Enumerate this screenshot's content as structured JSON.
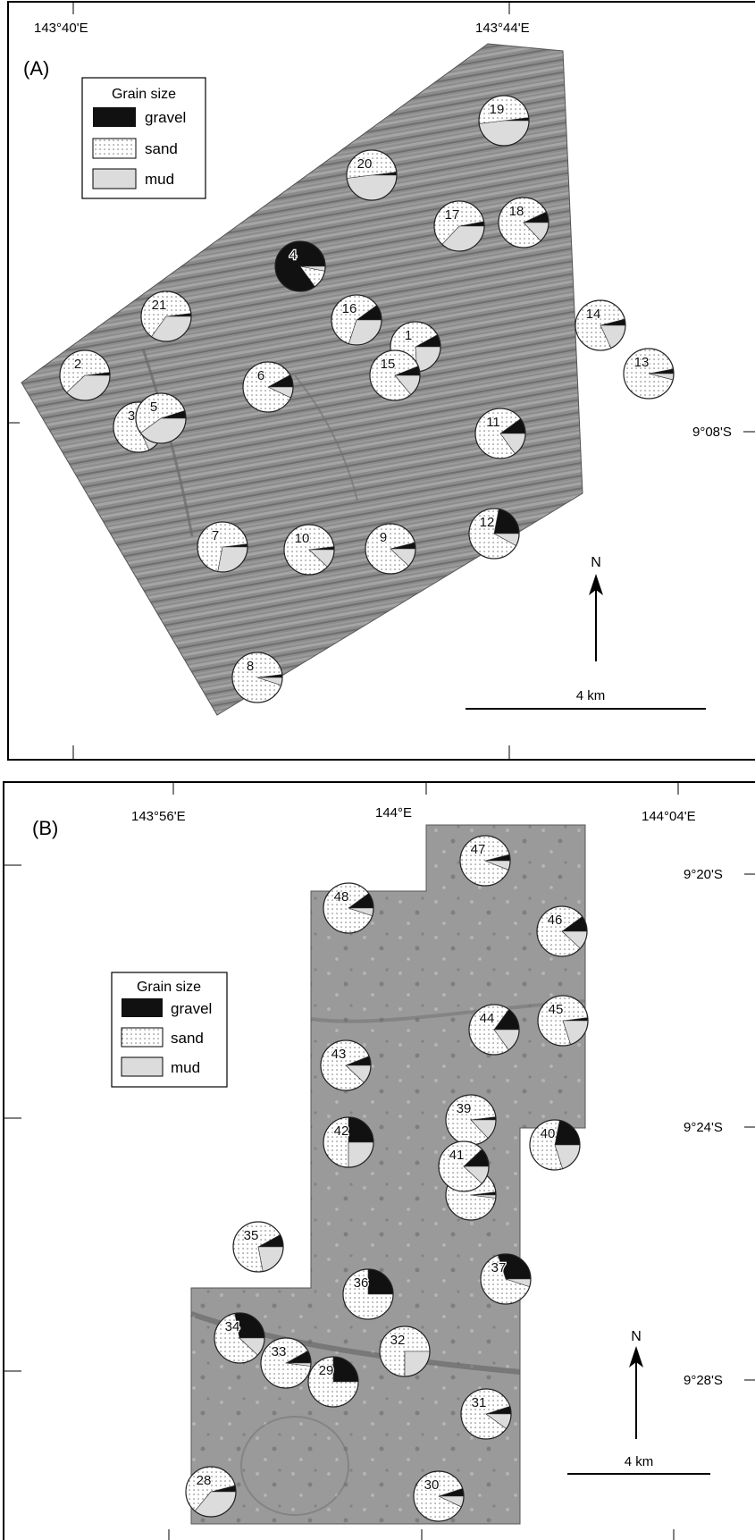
{
  "colors": {
    "gravel": "#111111",
    "sand": "#ffffff",
    "mud": "#dcdcdc",
    "relief": "#8d8d8d",
    "frame": "#000000"
  },
  "legend": {
    "title": "Grain size",
    "items": [
      {
        "key": "gravel",
        "label": "gravel"
      },
      {
        "key": "sand",
        "label": "sand"
      },
      {
        "key": "mud",
        "label": "mud"
      }
    ]
  },
  "panels": [
    {
      "label": "(A)",
      "lon_labels": [
        "143°40'E",
        "143°44'E"
      ],
      "lat_labels": [
        "9°08'S"
      ],
      "north_label": "N",
      "scale_label": "4 km",
      "sites": [
        {
          "id": "1",
          "gravel": 0.08,
          "sand": 0.68,
          "mud": 0.24
        },
        {
          "id": "2",
          "gravel": 0.02,
          "sand": 0.6,
          "mud": 0.38
        },
        {
          "id": "3",
          "gravel": 0.02,
          "sand": 0.8,
          "mud": 0.18
        },
        {
          "id": "4",
          "gravel": 0.85,
          "sand": 0.12,
          "mud": 0.03
        },
        {
          "id": "5",
          "gravel": 0.05,
          "sand": 0.55,
          "mud": 0.4
        },
        {
          "id": "6",
          "gravel": 0.08,
          "sand": 0.85,
          "mud": 0.07
        },
        {
          "id": "7",
          "gravel": 0.02,
          "sand": 0.7,
          "mud": 0.28
        },
        {
          "id": "8",
          "gravel": 0.02,
          "sand": 0.93,
          "mud": 0.05
        },
        {
          "id": "9",
          "gravel": 0.04,
          "sand": 0.84,
          "mud": 0.12
        },
        {
          "id": "10",
          "gravel": 0.02,
          "sand": 0.86,
          "mud": 0.12
        },
        {
          "id": "11",
          "gravel": 0.1,
          "sand": 0.75,
          "mud": 0.15
        },
        {
          "id": "12",
          "gravel": 0.22,
          "sand": 0.7,
          "mud": 0.08
        },
        {
          "id": "13",
          "gravel": 0.03,
          "sand": 0.93,
          "mud": 0.04
        },
        {
          "id": "14",
          "gravel": 0.04,
          "sand": 0.78,
          "mud": 0.18
        },
        {
          "id": "15",
          "gravel": 0.06,
          "sand": 0.8,
          "mud": 0.14
        },
        {
          "id": "16",
          "gravel": 0.1,
          "sand": 0.6,
          "mud": 0.3
        },
        {
          "id": "17",
          "gravel": 0.03,
          "sand": 0.6,
          "mud": 0.37
        },
        {
          "id": "18",
          "gravel": 0.07,
          "sand": 0.8,
          "mud": 0.13
        },
        {
          "id": "19",
          "gravel": 0.02,
          "sand": 0.5,
          "mud": 0.48
        },
        {
          "id": "20",
          "gravel": 0.02,
          "sand": 0.5,
          "mud": 0.48
        },
        {
          "id": "21",
          "gravel": 0.02,
          "sand": 0.63,
          "mud": 0.35
        }
      ]
    },
    {
      "label": "(B)",
      "lon_labels": [
        "143°56'E",
        "144°E",
        "144°04'E"
      ],
      "lat_labels": [
        "9°20'S",
        "9°24'S",
        "9°28'S"
      ],
      "north_label": "N",
      "scale_label": "4 km",
      "sites": [
        {
          "id": "28",
          "gravel": 0.04,
          "sand": 0.6,
          "mud": 0.36
        },
        {
          "id": "29",
          "gravel": 0.25,
          "sand": 0.75,
          "mud": 0.0
        },
        {
          "id": "30",
          "gravel": 0.05,
          "sand": 0.88,
          "mud": 0.07
        },
        {
          "id": "31",
          "gravel": 0.05,
          "sand": 0.85,
          "mud": 0.1
        },
        {
          "id": "32",
          "gravel": 0.0,
          "sand": 0.75,
          "mud": 0.25
        },
        {
          "id": "33",
          "gravel": 0.08,
          "sand": 0.9,
          "mud": 0.02
        },
        {
          "id": "34",
          "gravel": 0.28,
          "sand": 0.6,
          "mud": 0.12
        },
        {
          "id": "35",
          "gravel": 0.08,
          "sand": 0.7,
          "mud": 0.22
        },
        {
          "id": "36",
          "gravel": 0.25,
          "sand": 0.75,
          "mud": 0.0
        },
        {
          "id": "37",
          "gravel": 0.3,
          "sand": 0.65,
          "mud": 0.05
        },
        {
          "id": "38",
          "gravel": 0.02,
          "sand": 0.96,
          "mud": 0.02
        },
        {
          "id": "39",
          "gravel": 0.02,
          "sand": 0.85,
          "mud": 0.13
        },
        {
          "id": "40",
          "gravel": 0.22,
          "sand": 0.58,
          "mud": 0.2
        },
        {
          "id": "41",
          "gravel": 0.12,
          "sand": 0.76,
          "mud": 0.12
        },
        {
          "id": "42",
          "gravel": 0.25,
          "sand": 0.5,
          "mud": 0.25
        },
        {
          "id": "43",
          "gravel": 0.06,
          "sand": 0.82,
          "mud": 0.12
        },
        {
          "id": "44",
          "gravel": 0.15,
          "sand": 0.7,
          "mud": 0.15
        },
        {
          "id": "45",
          "gravel": 0.02,
          "sand": 0.78,
          "mud": 0.2
        },
        {
          "id": "46",
          "gravel": 0.1,
          "sand": 0.78,
          "mud": 0.12
        },
        {
          "id": "47",
          "gravel": 0.04,
          "sand": 0.9,
          "mud": 0.06
        },
        {
          "id": "48",
          "gravel": 0.1,
          "sand": 0.85,
          "mud": 0.05
        }
      ]
    }
  ]
}
